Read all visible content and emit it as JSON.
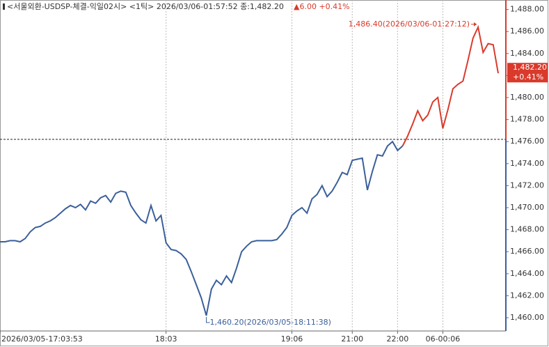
{
  "chart_data": {
    "type": "line",
    "title": "<서울외환-USDSP-체결-익일02시> <1틱> 2026/03/06-01:57:52 종:1,482.20",
    "change_label": "▲6.00 +0.41%",
    "xlim": [
      0,
      99
    ],
    "xticks": [
      {
        "value": 0,
        "label": "2026/03/05-17:03:53"
      },
      {
        "value": 33,
        "label": "18:03"
      },
      {
        "value": 58,
        "label": "19:06"
      },
      {
        "value": 70,
        "label": "21:00"
      },
      {
        "value": 79,
        "label": "22:00"
      },
      {
        "value": 88,
        "label": "06-00:06"
      }
    ],
    "ylim": [
      1458.8,
      1488.86
    ],
    "yticks": [
      {
        "value": 1460,
        "label": "1,460.00"
      },
      {
        "value": 1462,
        "label": "1,462.00"
      },
      {
        "value": 1464,
        "label": "1,464.00"
      },
      {
        "value": 1466,
        "label": "1,466.00"
      },
      {
        "value": 1468,
        "label": "1,468.00"
      },
      {
        "value": 1470,
        "label": "1,470.00"
      },
      {
        "value": 1472,
        "label": "1,472.00"
      },
      {
        "value": 1474,
        "label": "1,474.00"
      },
      {
        "value": 1476,
        "label": "1,476.00"
      },
      {
        "value": 1478,
        "label": "1,478.00"
      },
      {
        "value": 1480,
        "label": "1,480.00"
      },
      {
        "value": 1482,
        "label": "1,482.00"
      },
      {
        "value": 1484,
        "label": "1,484.00"
      },
      {
        "value": 1486,
        "label": "1,486.00"
      },
      {
        "value": 1488,
        "label": "1,488.00"
      }
    ],
    "reference_line": 1476.2,
    "series": [
      {
        "color": "#3a5f9a",
        "values": [
          1466.9,
          1466.9,
          1467.0,
          1467.0,
          1466.9,
          1467.2,
          1467.8,
          1468.2,
          1468.3,
          1468.6,
          1468.8,
          1469.1,
          1469.5,
          1469.9,
          1470.2,
          1470.0,
          1470.3,
          1469.8,
          1470.6,
          1470.4,
          1470.9,
          1471.1,
          1470.5,
          1471.3,
          1471.5,
          1471.4,
          1470.2,
          1469.5,
          1468.9,
          1468.6,
          1470.2,
          1468.8,
          1469.3,
          1466.8,
          1466.2,
          1466.1,
          1465.8,
          1465.3,
          1464.2,
          1463.0,
          1461.8,
          1460.2,
          1462.6,
          1463.4,
          1463.0,
          1463.8,
          1463.2,
          1464.5,
          1466.0,
          1466.5,
          1466.9,
          1467.0,
          1467.0,
          1467.0,
          1467.0,
          1467.1,
          1467.6,
          1468.2,
          1469.3,
          1469.7,
          1470.0,
          1469.5,
          1470.8,
          1471.2,
          1472.0,
          1471.0,
          1471.5,
          1472.3,
          1473.2,
          1473.0,
          1474.3,
          1474.4,
          1474.5,
          1471.6,
          1473.3,
          1474.8,
          1474.7,
          1475.6,
          1476.0,
          1475.2,
          1475.6,
          null,
          null,
          null,
          null,
          null,
          null,
          null,
          null,
          null,
          null,
          null,
          null,
          null,
          null,
          null,
          null,
          null,
          null,
          null
        ]
      },
      {
        "color": "#d93a2b",
        "values": [
          null,
          null,
          null,
          null,
          null,
          null,
          null,
          null,
          null,
          null,
          null,
          null,
          null,
          null,
          null,
          null,
          null,
          null,
          null,
          null,
          null,
          null,
          null,
          null,
          null,
          null,
          null,
          null,
          null,
          null,
          null,
          null,
          null,
          null,
          null,
          null,
          null,
          null,
          null,
          null,
          null,
          null,
          null,
          null,
          null,
          null,
          null,
          null,
          null,
          null,
          null,
          null,
          null,
          null,
          null,
          null,
          null,
          null,
          null,
          null,
          null,
          null,
          null,
          null,
          null,
          null,
          null,
          null,
          null,
          null,
          null,
          null,
          null,
          null,
          null,
          null,
          null,
          null,
          null,
          null,
          1475.6,
          1476.5,
          1477.6,
          1478.8,
          1477.9,
          1478.4,
          1479.6,
          1480.0,
          1477.2,
          1478.9,
          1480.8,
          1481.2,
          1481.5,
          1483.4,
          1485.4,
          1486.4,
          1484.1,
          1484.9,
          1484.8,
          1482.2
        ]
      }
    ],
    "annotations": [
      {
        "text": "1,486.40(2026/03/06-01:27:12)",
        "x": 95,
        "y": 1486.4,
        "color": "#d93a2b"
      },
      {
        "text": "1,460.20(2026/03/05-18:11:38)",
        "x": 41,
        "y": 1460.2,
        "color": "#3a5f9a"
      }
    ],
    "last_price": {
      "value": 1482.2,
      "label": "1,482.20",
      "change": "+0.41%",
      "color": "#d93a2b"
    }
  }
}
